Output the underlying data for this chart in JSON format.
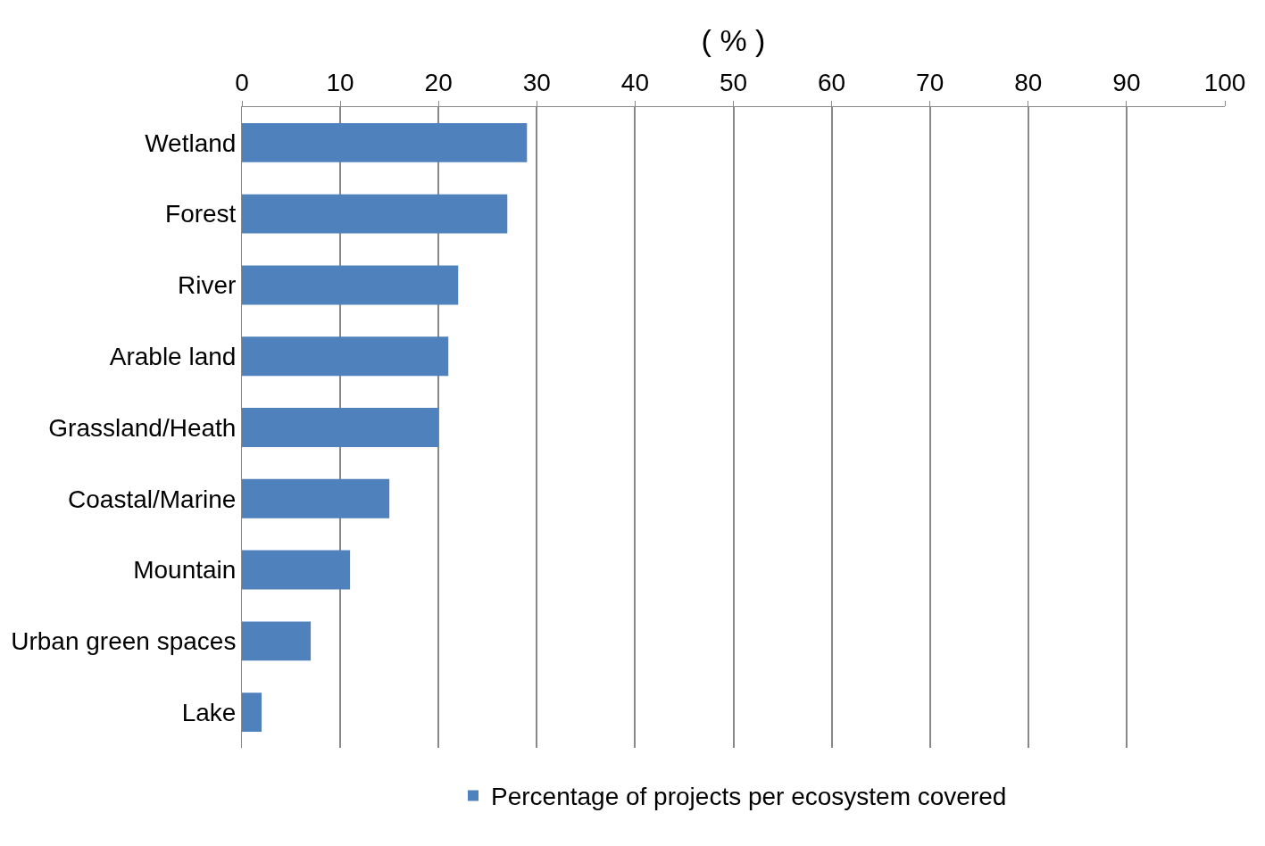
{
  "chart_data": {
    "type": "bar",
    "orientation": "horizontal",
    "xlabel": "( % )",
    "categories": [
      "Wetland",
      "Forest",
      "River",
      "Arable land",
      "Grassland/Heath",
      "Coastal/Marine",
      "Mountain",
      "Urban green spaces",
      "Lake"
    ],
    "series": [
      {
        "name": "Percentage of projects per ecosystem covered",
        "color": "#4f81bd",
        "values": [
          29,
          27,
          22,
          21,
          20,
          15,
          11,
          7,
          2
        ]
      }
    ],
    "xlim": [
      0,
      100
    ],
    "xticks": [
      0,
      10,
      20,
      30,
      40,
      50,
      60,
      70,
      80,
      90,
      100
    ],
    "grid": "x",
    "legend": "bottom"
  }
}
